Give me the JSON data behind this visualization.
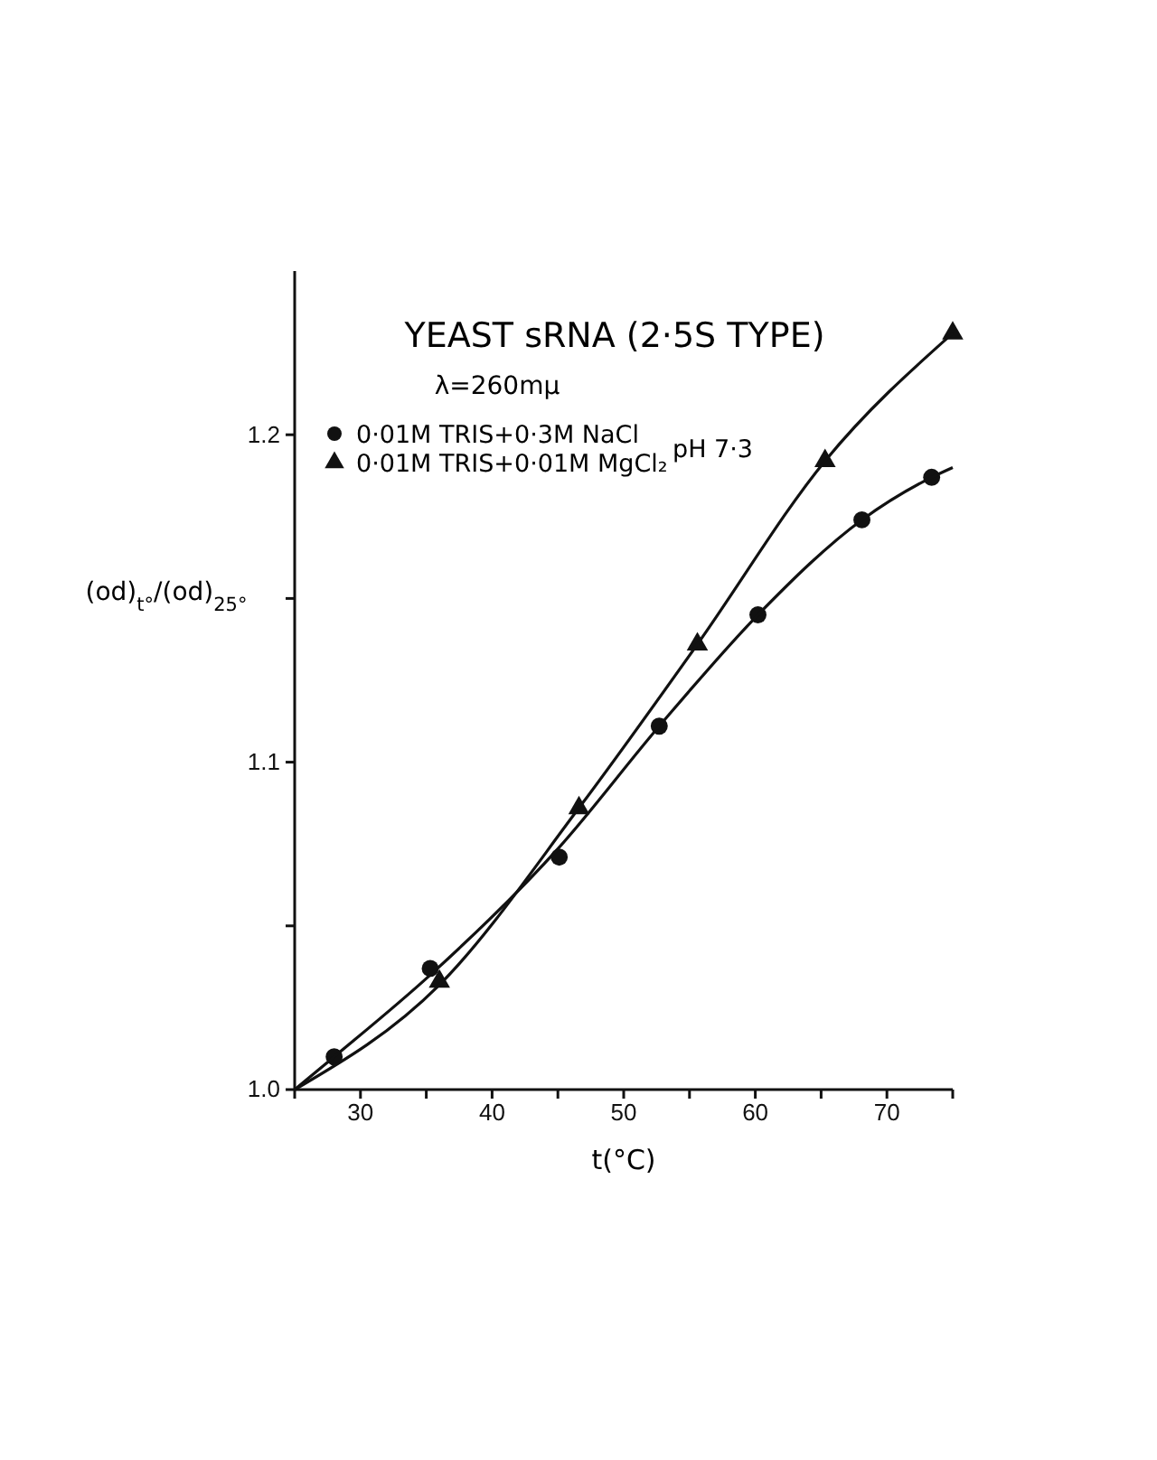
{
  "chart_data": {
    "type": "scatter",
    "title": "YEAST sRNA (2·5S TYPE)",
    "subtitle": "λ=260mμ",
    "xlabel": "t(°C)",
    "ylabel": "(od)$_{t°}$/(od)$_{25°}$",
    "xlim": [
      25,
      75
    ],
    "ylim": [
      1.0,
      1.25
    ],
    "xticks": [
      {
        "value": 25,
        "label": null
      },
      30,
      {
        "value": 35,
        "label": null
      },
      40,
      {
        "value": 45,
        "label": null
      },
      50,
      {
        "value": 55,
        "label": null
      },
      60,
      {
        "value": 65,
        "label": null
      },
      70,
      {
        "value": 75,
        "label": null
      }
    ],
    "yticks": [
      {
        "value": 1.0,
        "label": "1.0"
      },
      {
        "value": 1.05,
        "label": null
      },
      {
        "value": 1.1,
        "label": "1.1"
      },
      {
        "value": 1.15,
        "label": null
      },
      {
        "value": 1.2,
        "label": "1.2"
      }
    ],
    "grid": false,
    "legend": "top left",
    "annotations": [
      "pH 7·3"
    ],
    "series": [
      {
        "name": "0·01M TRIS+0·3M NaCl",
        "color": "#111111",
        "marker": "circle",
        "x": [
          28,
          35.3,
          45.1,
          52.7,
          60.2,
          68.1,
          73.4
        ],
        "values": [
          1.01,
          1.037,
          1.071,
          1.111,
          1.145,
          1.174,
          1.187
        ]
      },
      {
        "name": "0·01M TRIS+0·01M MgCl₂",
        "color": "#111111",
        "marker": "triangle",
        "x": [
          36,
          46.6,
          55.6,
          65.3,
          75
        ],
        "values": [
          1.033,
          1.086,
          1.136,
          1.192,
          1.231
        ]
      },
      {
        "type": "line",
        "color": "#111111",
        "marker": "none",
        "x": [
          25,
          28,
          35.3,
          45.1,
          52.7,
          60.2,
          68.1,
          73.4,
          75
        ],
        "values": [
          1.0,
          1.01,
          1.035,
          1.074,
          1.111,
          1.145,
          1.174,
          1.187,
          1.19
        ]
      },
      {
        "type": "line",
        "color": "#111111",
        "marker": "none",
        "x": [
          25,
          36,
          46.6,
          55.6,
          65.3,
          75
        ],
        "values": [
          1.0,
          1.032,
          1.086,
          1.136,
          1.192,
          1.231
        ]
      }
    ]
  }
}
